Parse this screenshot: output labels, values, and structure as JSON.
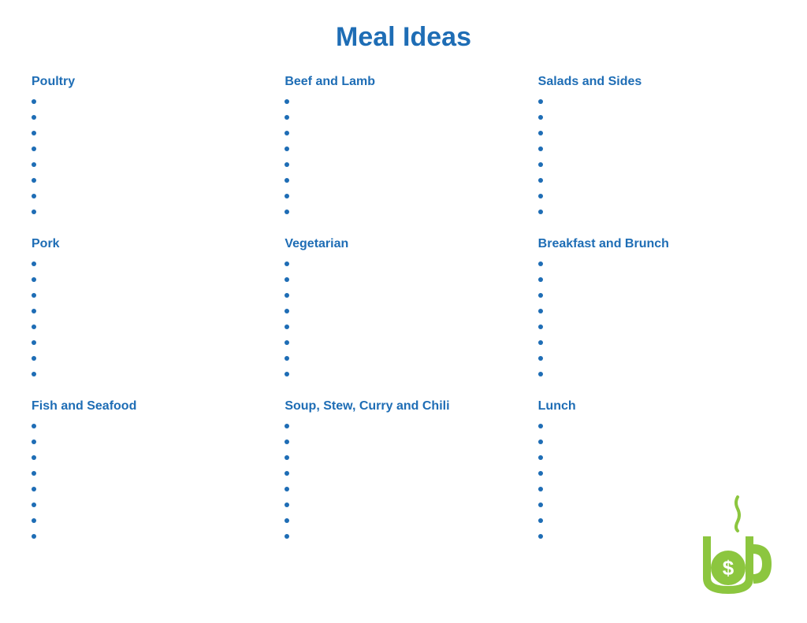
{
  "page": {
    "title": "Meal Ideas",
    "title_color": "#1e6db5",
    "heading_color": "#1e6db5",
    "bullet_color": "#1e6db5",
    "bullets_per_section": 8,
    "background_color": "#ffffff"
  },
  "columns": [
    {
      "sections": [
        {
          "title": "Poultry"
        },
        {
          "title": "Pork"
        },
        {
          "title": "Fish and Seafood"
        }
      ]
    },
    {
      "sections": [
        {
          "title": "Beef and Lamb"
        },
        {
          "title": "Vegetarian"
        },
        {
          "title": "Soup, Stew, Curry and Chili"
        }
      ]
    },
    {
      "sections": [
        {
          "title": "Salads and Sides"
        },
        {
          "title": "Breakfast and Brunch"
        },
        {
          "title": "Lunch"
        }
      ]
    }
  ],
  "logo": {
    "color": "#8cc63f",
    "symbol": "$"
  }
}
